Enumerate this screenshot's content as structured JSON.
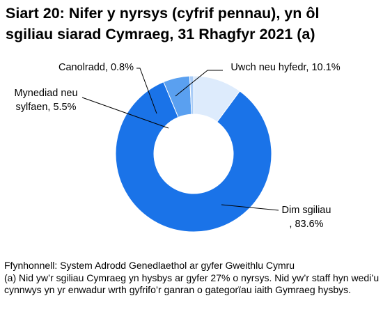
{
  "title": {
    "line1": "Siart 20: Nifer y nyrsys (cyfrif pennau), yn ôl",
    "line2": "sgiliau siarad Cymraeg, 31 Rhagfyr 2021 (a)"
  },
  "chart_data": {
    "type": "pie",
    "variant": "donut",
    "title": "Siart 20: Nifer y nyrsys (cyfrif pennau), yn ôl sgiliau siarad Cymraeg, 31 Rhagfyr 2021 (a)",
    "slices": [
      {
        "label": "Uwch neu hyfedr",
        "value": 10.1,
        "label_text": [
          "Uwch neu hyfedr, 10.1%"
        ],
        "color": "#ddebfc"
      },
      {
        "label": "Dim sgiliau",
        "value": 83.6,
        "label_text": [
          "Dim sgiliau",
          ", 83.6%"
        ],
        "color": "#1a73e8"
      },
      {
        "label": "Mynediad neu sylfaen",
        "value": 5.5,
        "label_text": [
          "Mynediad neu",
          "sylfaen, 5.5%"
        ],
        "color": "#5aa0f0"
      },
      {
        "label": "Canolradd",
        "value": 0.8,
        "label_text": [
          "Canolradd, 0.8%"
        ],
        "color": "#a9ccf7"
      }
    ],
    "unit": "%",
    "start_angle_deg": 0,
    "direction": "clockwise",
    "legend": "none"
  },
  "notes": {
    "source": "Ffynhonnell: System Adrodd Genedlaethol ar gyfer Gweithlu Cymru",
    "footnote": "(a) Nid yw’r sgiliau Cymraeg yn hysbys ar gyfer 27% o nyrsys. Nid yw’r staff hyn wedi’u cynnwys yn yr enwadur wrth gyfrifo’r ganran o gategorïau iaith Gymraeg hysbys."
  }
}
